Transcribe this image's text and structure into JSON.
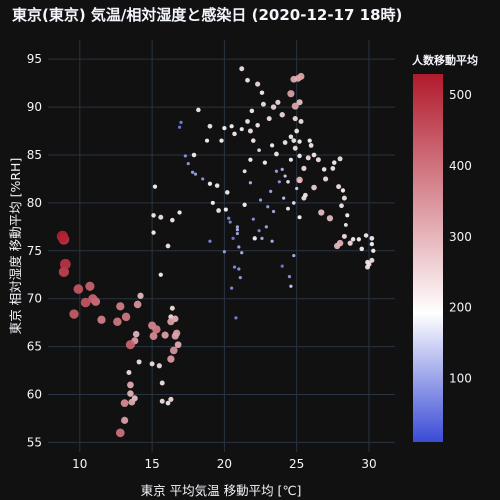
{
  "chart_data": {
    "type": "scatter",
    "title": "東京(東京) 気温/相対湿度と感染日 (2020-12-17 18時)",
    "xlabel": "東京 平均気温 移動平均 [℃]",
    "ylabel": "東京 相対湿度 移動平均 [%RH]",
    "xlim": [
      7.8,
      31.8
    ],
    "ylim": [
      54,
      97
    ],
    "xticks": [
      10,
      15,
      20,
      25,
      30
    ],
    "yticks": [
      55,
      60,
      65,
      70,
      75,
      80,
      85,
      90,
      95
    ],
    "grid": true,
    "colorbar": {
      "title": "人数移動平均",
      "range": [
        10,
        530
      ],
      "ticks": [
        100,
        200,
        300,
        400,
        500
      ],
      "colorscale": [
        "#3a4bd6",
        "#ffffff",
        "#b11a2c"
      ],
      "position": "right"
    },
    "size_encodes": "人数移動平均",
    "points": [
      [
        8.8,
        76.5,
        520
      ],
      [
        8.9,
        76.2,
        490
      ],
      [
        9.0,
        73.6,
        490
      ],
      [
        8.9,
        72.8,
        470
      ],
      [
        9.9,
        71.0,
        440
      ],
      [
        10.7,
        71.3,
        420
      ],
      [
        10.4,
        69.6,
        440
      ],
      [
        10.9,
        70.0,
        420
      ],
      [
        9.6,
        68.4,
        430
      ],
      [
        11.1,
        69.7,
        400
      ],
      [
        11.5,
        67.8,
        380
      ],
      [
        12.8,
        69.2,
        380
      ],
      [
        13.2,
        68.1,
        390
      ],
      [
        12.6,
        67.6,
        390
      ],
      [
        14.0,
        69.4,
        350
      ],
      [
        13.5,
        65.2,
        420
      ],
      [
        13.8,
        65.6,
        330
      ],
      [
        13.9,
        66.3,
        300
      ],
      [
        14.2,
        70.3,
        290
      ],
      [
        14.1,
        63.4,
        230
      ],
      [
        15.0,
        67.2,
        370
      ],
      [
        15.3,
        66.8,
        380
      ],
      [
        15.1,
        66.1,
        360
      ],
      [
        15.0,
        63.2,
        230
      ],
      [
        15.5,
        63.0,
        240
      ],
      [
        15.9,
        66.2,
        330
      ],
      [
        16.3,
        67.6,
        330
      ],
      [
        16.6,
        66.1,
        330
      ],
      [
        16.5,
        64.6,
        350
      ],
      [
        16.3,
        63.7,
        340
      ],
      [
        16.8,
        65.2,
        310
      ],
      [
        16.7,
        66.4,
        330
      ],
      [
        16.6,
        67.9,
        300
      ],
      [
        16.4,
        69.0,
        230
      ],
      [
        16.3,
        68.1,
        240
      ],
      [
        15.7,
        61.2,
        230
      ],
      [
        15.7,
        59.3,
        230
      ],
      [
        16.1,
        59.1,
        220
      ],
      [
        16.3,
        59.5,
        240
      ],
      [
        13.5,
        61.0,
        310
      ],
      [
        13.5,
        60.1,
        300
      ],
      [
        13.1,
        59.1,
        360
      ],
      [
        13.6,
        59.2,
        310
      ],
      [
        13.1,
        57.3,
        330
      ],
      [
        12.8,
        56.0,
        400
      ],
      [
        13.8,
        59.6,
        280
      ],
      [
        13.4,
        62.3,
        230
      ],
      [
        15.1,
        78.7,
        210
      ],
      [
        15.1,
        76.9,
        200
      ],
      [
        15.2,
        81.7,
        200
      ],
      [
        15.6,
        78.5,
        230
      ],
      [
        16.4,
        78.2,
        210
      ],
      [
        16.9,
        79.0,
        200
      ],
      [
        16.1,
        75.5,
        220
      ],
      [
        15.6,
        72.5,
        200
      ],
      [
        16.9,
        87.9,
        60
      ],
      [
        17.0,
        88.4,
        70
      ],
      [
        17.5,
        84.1,
        90
      ],
      [
        17.8,
        83.2,
        100
      ],
      [
        17.9,
        85.0,
        210
      ],
      [
        18.2,
        89.7,
        210
      ],
      [
        18.8,
        86.5,
        190
      ],
      [
        19.0,
        82.0,
        200
      ],
      [
        19.2,
        80.0,
        190
      ],
      [
        19.6,
        79.2,
        220
      ],
      [
        19.8,
        86.5,
        200
      ],
      [
        20.2,
        81.1,
        210
      ],
      [
        20.1,
        79.3,
        190
      ],
      [
        20.4,
        78.0,
        80
      ],
      [
        20.6,
        76.3,
        60
      ],
      [
        20.7,
        73.3,
        80
      ],
      [
        20.9,
        76.8,
        110
      ],
      [
        20.9,
        77.2,
        120
      ],
      [
        21.0,
        75.4,
        110
      ],
      [
        21.2,
        74.8,
        120
      ],
      [
        21.0,
        73.1,
        90
      ],
      [
        21.1,
        72.2,
        100
      ],
      [
        20.5,
        71.1,
        80
      ],
      [
        20.8,
        68.0,
        70
      ],
      [
        21.4,
        79.8,
        200
      ],
      [
        21.8,
        82.1,
        120
      ],
      [
        21.4,
        83.3,
        180
      ],
      [
        21.8,
        84.5,
        200
      ],
      [
        22.0,
        78.3,
        90
      ],
      [
        22.1,
        76.3,
        200
      ],
      [
        22.4,
        77.1,
        80
      ],
      [
        22.6,
        76.3,
        120
      ],
      [
        22.9,
        77.5,
        110
      ],
      [
        23.3,
        76.0,
        120
      ],
      [
        22.5,
        80.3,
        100
      ],
      [
        23.0,
        79.6,
        100
      ],
      [
        23.2,
        81.2,
        110
      ],
      [
        23.6,
        83.3,
        100
      ],
      [
        23.8,
        82.2,
        90
      ],
      [
        23.4,
        79.1,
        110
      ],
      [
        24.0,
        83.5,
        120
      ],
      [
        24.2,
        82.8,
        150
      ],
      [
        24.4,
        82.2,
        170
      ],
      [
        24.6,
        84.5,
        190
      ],
      [
        24.4,
        79.4,
        180
      ],
      [
        24.1,
        80.5,
        140
      ],
      [
        25.0,
        81.5,
        150
      ],
      [
        25.2,
        82.3,
        180
      ],
      [
        24.8,
        80.0,
        170
      ],
      [
        24.8,
        74.5,
        120
      ],
      [
        24.0,
        73.4,
        60
      ],
      [
        24.5,
        72.3,
        90
      ],
      [
        24.6,
        71.3,
        150
      ],
      [
        22.4,
        85.5,
        170
      ],
      [
        22.0,
        86.5,
        210
      ],
      [
        21.8,
        87.5,
        230
      ],
      [
        21.6,
        88.5,
        220
      ],
      [
        21.9,
        89.6,
        210
      ],
      [
        22.3,
        88.1,
        210
      ],
      [
        22.6,
        91.5,
        210
      ],
      [
        22.7,
        90.3,
        230
      ],
      [
        23.1,
        88.8,
        230
      ],
      [
        23.4,
        90.0,
        250
      ],
      [
        23.7,
        90.5,
        240
      ],
      [
        24.0,
        89.2,
        250
      ],
      [
        23.3,
        86.0,
        200
      ],
      [
        23.6,
        85.1,
        220
      ],
      [
        24.2,
        86.3,
        220
      ],
      [
        24.6,
        86.9,
        210
      ],
      [
        24.9,
        88.8,
        240
      ],
      [
        25.0,
        87.5,
        220
      ],
      [
        24.8,
        86.5,
        220
      ],
      [
        24.9,
        85.7,
        230
      ],
      [
        25.2,
        84.9,
        210
      ],
      [
        25.5,
        83.6,
        240
      ],
      [
        25.8,
        84.7,
        230
      ],
      [
        25.2,
        82.4,
        300
      ],
      [
        25.5,
        80.5,
        230
      ],
      [
        25.2,
        78.5,
        190
      ],
      [
        24.8,
        92.9,
        310
      ],
      [
        25.1,
        93.0,
        310
      ],
      [
        25.3,
        93.2,
        320
      ],
      [
        24.6,
        91.4,
        330
      ],
      [
        24.9,
        90.1,
        320
      ],
      [
        25.2,
        90.5,
        280
      ],
      [
        21.2,
        94.0,
        230
      ],
      [
        21.6,
        92.8,
        220
      ],
      [
        22.3,
        92.4,
        240
      ],
      [
        20.0,
        87.8,
        200
      ],
      [
        20.5,
        88.0,
        200
      ],
      [
        20.7,
        87.2,
        210
      ],
      [
        21.2,
        87.7,
        190
      ],
      [
        26.2,
        81.6,
        260
      ],
      [
        26.7,
        79.0,
        290
      ],
      [
        27.3,
        78.4,
        290
      ],
      [
        27.5,
        83.6,
        220
      ],
      [
        27.6,
        84.2,
        210
      ],
      [
        28.0,
        84.6,
        230
      ],
      [
        27.9,
        81.7,
        230
      ],
      [
        28.2,
        81.3,
        200
      ],
      [
        28.3,
        80.5,
        230
      ],
      [
        28.1,
        79.7,
        220
      ],
      [
        28.5,
        78.7,
        190
      ],
      [
        28.4,
        77.7,
        180
      ],
      [
        28.3,
        76.5,
        230
      ],
      [
        28.7,
        75.8,
        240
      ],
      [
        28.9,
        76.2,
        210
      ],
      [
        29.3,
        76.2,
        200
      ],
      [
        29.5,
        75.2,
        210
      ],
      [
        29.8,
        76.6,
        210
      ],
      [
        30.0,
        73.6,
        230
      ],
      [
        30.2,
        76.3,
        220
      ],
      [
        30.2,
        75.7,
        200
      ],
      [
        30.3,
        75.0,
        200
      ],
      [
        29.9,
        73.8,
        220
      ],
      [
        29.9,
        73.3,
        230
      ],
      [
        28.0,
        75.8,
        300
      ],
      [
        27.8,
        75.5,
        290
      ],
      [
        30.2,
        74.0,
        230
      ],
      [
        26.0,
        86.0,
        220
      ],
      [
        26.2,
        85.0,
        220
      ],
      [
        26.5,
        84.5,
        230
      ],
      [
        26.9,
        83.5,
        210
      ],
      [
        27.0,
        82.5,
        240
      ],
      [
        25.3,
        88.5,
        230
      ],
      [
        25.9,
        86.5,
        200
      ],
      [
        25.6,
        80.8,
        220
      ],
      [
        25.2,
        86.4,
        200
      ],
      [
        22.8,
        84.2,
        200
      ],
      [
        19.5,
        81.8,
        210
      ],
      [
        19.0,
        88.0,
        220
      ],
      [
        20.3,
        78.4,
        80
      ],
      [
        20.0,
        74.9,
        100
      ],
      [
        20.9,
        77.5,
        110
      ],
      [
        18.0,
        83.0,
        100
      ],
      [
        18.5,
        82.5,
        90
      ],
      [
        19.0,
        76.0,
        80
      ],
      [
        17.3,
        84.9,
        90
      ]
    ]
  }
}
